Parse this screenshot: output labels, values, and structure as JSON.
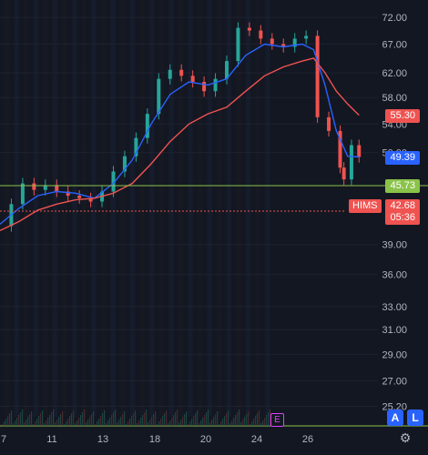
{
  "colors": {
    "background": "#131722",
    "up": "#26a69a",
    "down": "#ef5350",
    "ema_fast": "#2962ff",
    "ema_slow": "#ef5350",
    "support": "#8bc34a",
    "current_line": "#ef5350",
    "axis_text": "#b2b5be"
  },
  "chart_data": {
    "type": "line",
    "symbol": "HIMS",
    "x_ticks": [
      "7",
      "11",
      "13",
      "18",
      "20",
      "24",
      "26"
    ],
    "y_ticks": [
      "72.00",
      "67.00",
      "62.00",
      "58.00",
      "54.00",
      "50.00",
      "39.00",
      "36.00",
      "33.00",
      "31.00",
      "29.00",
      "27.00",
      "25.20"
    ],
    "ylim": [
      24.5,
      74
    ],
    "y_scale": "log",
    "xlim": [
      0,
      100
    ],
    "series": [
      {
        "type": "candles-approx",
        "x": [
          0,
          3,
          6,
          9,
          12,
          15,
          18,
          21,
          24,
          27,
          30,
          33,
          36,
          39,
          42,
          45,
          48,
          51,
          54,
          57,
          60,
          63,
          66,
          69,
          72,
          75,
          78,
          81,
          84,
          87,
          90,
          91,
          93,
          95
        ],
        "close": [
          41.0,
          43.5,
          46.0,
          45.2,
          45.8,
          45.0,
          44.5,
          44.2,
          43.8,
          45.0,
          47.5,
          49.5,
          52.0,
          55.5,
          61.0,
          62.5,
          61.5,
          60.5,
          59.0,
          61.0,
          64.0,
          70.0,
          69.5,
          68.0,
          67.0,
          66.5,
          68.0,
          68.5,
          55.0,
          53.0,
          48.0,
          46.5,
          51.0,
          49.4
        ]
      },
      {
        "type": "line",
        "x": [
          0,
          5,
          10,
          15,
          20,
          25,
          30,
          35,
          40,
          45,
          50,
          55,
          60,
          65,
          70,
          75,
          80,
          83,
          86,
          89,
          92,
          95
        ],
        "values": [
          41.2,
          43.0,
          44.5,
          45.0,
          44.8,
          44.2,
          46.0,
          49.0,
          54.0,
          58.5,
          60.5,
          60.0,
          61.0,
          65.0,
          67.0,
          66.5,
          67.0,
          66.0,
          60.0,
          53.0,
          49.5,
          49.4
        ]
      },
      {
        "type": "line",
        "x": [
          0,
          5,
          10,
          15,
          20,
          25,
          30,
          35,
          40,
          45,
          50,
          55,
          60,
          65,
          70,
          75,
          80,
          83,
          86,
          89,
          92,
          95
        ],
        "values": [
          40.5,
          41.5,
          42.8,
          43.5,
          44.0,
          44.2,
          44.8,
          46.0,
          48.5,
          51.5,
          54.0,
          55.5,
          56.5,
          59.0,
          61.5,
          63.0,
          64.0,
          64.5,
          62.0,
          59.0,
          57.0,
          55.3
        ]
      }
    ],
    "levels": [
      {
        "value": 45.73,
        "label": "45.73",
        "kind": "support"
      },
      {
        "value": 42.68,
        "label": "42.68",
        "kind": "current"
      }
    ],
    "price_tags": [
      {
        "value": 55.3,
        "label": "55.30",
        "color": "#ef5350"
      },
      {
        "value": 49.39,
        "label": "49.39",
        "color": "#2962ff"
      },
      {
        "value": 45.73,
        "label": "45.73",
        "color": "#8bc34a"
      }
    ],
    "current": {
      "symbol": "HIMS",
      "price": "42.68",
      "countdown": "05:36"
    },
    "earnings_marker": "E"
  },
  "controls": {
    "auto_scale": "A",
    "log_scale": "L",
    "settings_icon": "gear-icon"
  }
}
